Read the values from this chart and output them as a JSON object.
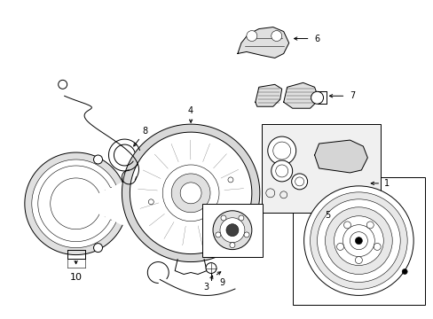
{
  "background_color": "#ffffff",
  "fig_width": 4.89,
  "fig_height": 3.6,
  "dpi": 100,
  "lc": "#000000",
  "lw": 0.7,
  "tlw": 0.4,
  "fs": 7,
  "layout": {
    "xmin": 0,
    "xmax": 489,
    "ymin": 0,
    "ymax": 360
  }
}
